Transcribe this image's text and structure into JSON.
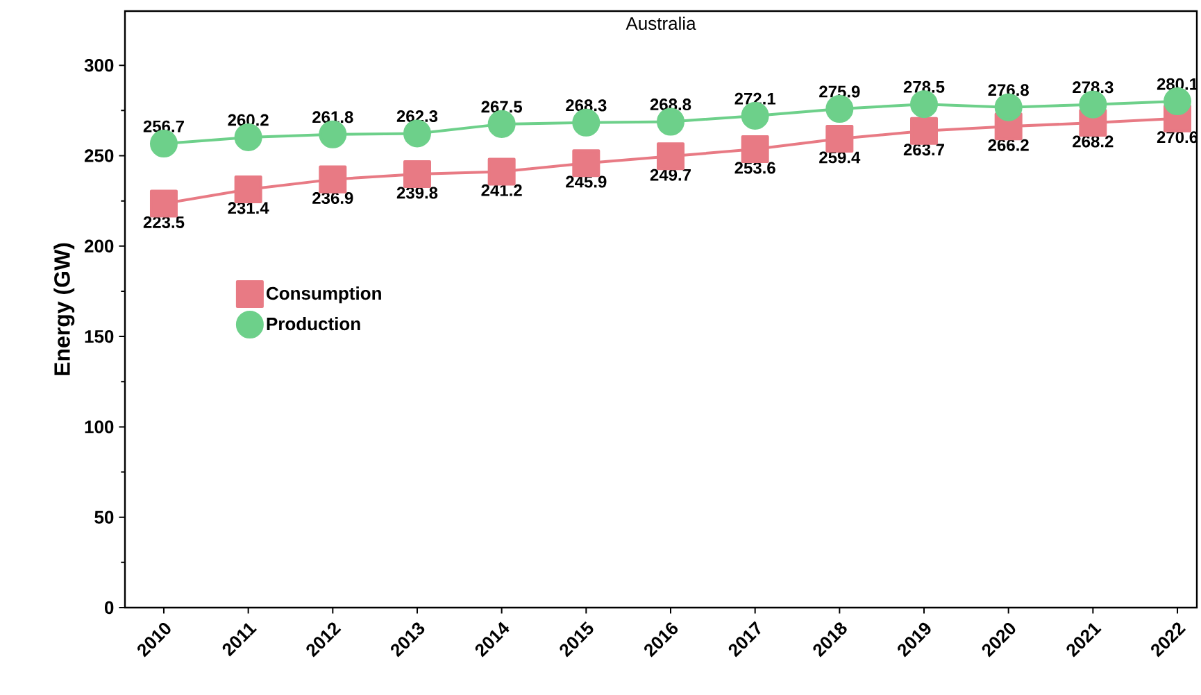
{
  "chart_data": {
    "type": "line",
    "title": "Australia",
    "ylabel": "Energy (GW)",
    "categories": [
      "2010",
      "2011",
      "2012",
      "2013",
      "2014",
      "2015",
      "2016",
      "2017",
      "2018",
      "2019",
      "2020",
      "2021",
      "2022"
    ],
    "series": [
      {
        "name": "Consumption",
        "color": "#e87a84",
        "marker": "square",
        "values": [
          223.5,
          231.4,
          236.9,
          239.8,
          241.2,
          245.9,
          249.7,
          253.6,
          259.4,
          263.7,
          266.2,
          268.2,
          270.6
        ]
      },
      {
        "name": "Production",
        "color": "#6dd08a",
        "marker": "circle",
        "values": [
          256.7,
          260.2,
          261.8,
          262.3,
          267.5,
          268.3,
          268.8,
          272.1,
          275.9,
          278.5,
          276.8,
          278.3,
          280.1
        ]
      }
    ],
    "ylim": [
      0,
      330
    ],
    "yticks": [
      0,
      50,
      100,
      150,
      200,
      250,
      300
    ],
    "data_labels": true,
    "legend": "center left",
    "grid": false,
    "line_style": "solid"
  }
}
